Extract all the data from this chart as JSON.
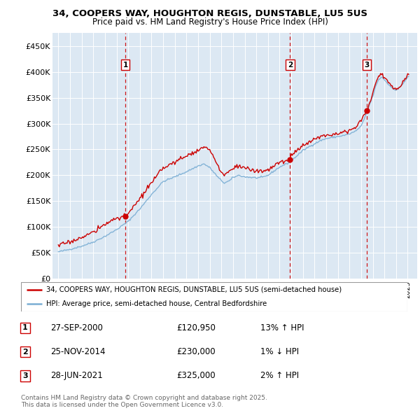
{
  "title1": "34, COOPERS WAY, HOUGHTON REGIS, DUNSTABLE, LU5 5US",
  "title2": "Price paid vs. HM Land Registry's House Price Index (HPI)",
  "bg_color": "#dce8f3",
  "red_line_label": "34, COOPERS WAY, HOUGHTON REGIS, DUNSTABLE, LU5 5US (semi-detached house)",
  "blue_line_label": "HPI: Average price, semi-detached house, Central Bedfordshire",
  "footer": "Contains HM Land Registry data © Crown copyright and database right 2025.\nThis data is licensed under the Open Government Licence v3.0.",
  "ylim": [
    0,
    475000
  ],
  "yticks": [
    0,
    50000,
    100000,
    150000,
    200000,
    250000,
    300000,
    350000,
    400000,
    450000
  ],
  "ytick_labels": [
    "£0",
    "£50K",
    "£100K",
    "£150K",
    "£200K",
    "£250K",
    "£300K",
    "£350K",
    "£400K",
    "£450K"
  ],
  "xlim_start": 1994.5,
  "xlim_end": 2025.8,
  "red_color": "#cc0000",
  "blue_color": "#7aaed4",
  "trans_years": [
    2000.75,
    2014.9,
    2021.5
  ],
  "trans_prices": [
    120950,
    230000,
    325000
  ],
  "trans_labels": [
    "1",
    "2",
    "3"
  ],
  "trans_dates": [
    "27-SEP-2000",
    "25-NOV-2014",
    "28-JUN-2021"
  ],
  "trans_prices_str": [
    "£120,950",
    "£230,000",
    "£325,000"
  ],
  "trans_hpi_str": [
    "13% ↑ HPI",
    "1% ↓ HPI",
    "2% ↑ HPI"
  ]
}
